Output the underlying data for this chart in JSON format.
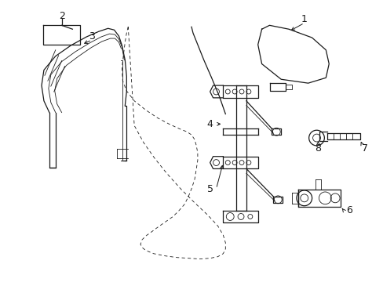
{
  "background_color": "#ffffff",
  "line_color": "#1a1a1a",
  "figsize": [
    4.89,
    3.6
  ],
  "dpi": 100,
  "lw": 0.9,
  "tlw": 0.6
}
